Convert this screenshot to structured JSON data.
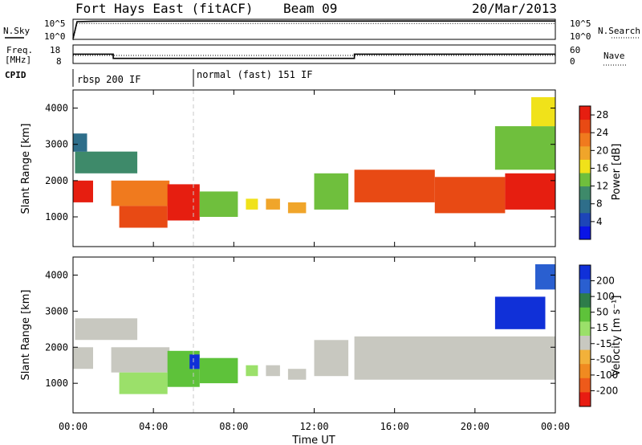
{
  "header": {
    "station": "Fort Hays East (fitACF)",
    "beam": "Beam 09",
    "date": "20/Mar/2013"
  },
  "strip_labels": {
    "nsky": "N.Sky",
    "nsearch": "N.Search",
    "freq_top": "Freq.",
    "freq_unit": "[MHz]",
    "nave": "Nave",
    "cpid": "CPID"
  },
  "noise_axis": {
    "left_ticks": [
      "10^5",
      "10^0"
    ],
    "right_ticks": [
      "10^5",
      "10^0"
    ]
  },
  "freq_axis": {
    "left_ticks": [
      "18",
      "8"
    ],
    "right_ticks": [
      "60",
      "0"
    ]
  },
  "cpid_segments": [
    {
      "label": "rbsp 200 IF",
      "start_hour": 0,
      "end_hour": 6
    },
    {
      "label": "normal (fast) 151 IF",
      "start_hour": 6,
      "end_hour": 24
    }
  ],
  "panels": {
    "power": {
      "ylabel": "Slant Range [km]",
      "cb_label": "Power [dB]"
    },
    "velocity": {
      "ylabel": "Slant Range [km]",
      "cb_label": "Velocity [m s⁻¹]"
    }
  },
  "x_axis": {
    "label": "Time UT",
    "ticks": [
      "00:00",
      "04:00",
      "08:00",
      "12:00",
      "16:00",
      "20:00",
      "00:00"
    ]
  },
  "colors": {
    "power_scale": [
      "#0a14e6",
      "#1d45b8",
      "#2e6e8a",
      "#3e8a6a",
      "#6fbf3d",
      "#f0e21a",
      "#f0a52a",
      "#f07a1e",
      "#e84a14",
      "#e61e10"
    ],
    "velocity_scale": [
      "#1030d8",
      "#2a5fd0",
      "#2e7d4a",
      "#5ec23a",
      "#9be06a",
      "#c8c8c0",
      "#f2b13a",
      "#f08a20",
      "#ee5a1a",
      "#e81c12"
    ]
  },
  "chart_data": [
    {
      "type": "line",
      "title": "Fort Hays East (fitACF)",
      "series": [
        {
          "name": "N.Sky",
          "x": [
            0,
            0.2,
            1,
            6,
            12,
            18,
            24
          ],
          "y": [
            0.5,
            60000,
            80000,
            90000,
            85000,
            90000,
            90000
          ]
        },
        {
          "name": "N.Search",
          "x": [
            0,
            0.2,
            24
          ],
          "y": [
            0.5,
            50000,
            50000
          ]
        }
      ],
      "xlabel": "Time UT",
      "xlim": [
        0,
        24
      ]
    },
    {
      "type": "line",
      "series": [
        {
          "name": "Freq.",
          "x": [
            0,
            2,
            2,
            14,
            14,
            24
          ],
          "y": [
            14,
            14,
            10.7,
            10.7,
            14,
            14
          ]
        },
        {
          "name": "Nave",
          "x": [
            0,
            24
          ],
          "y": [
            30,
            30
          ]
        }
      ],
      "xlim": [
        0,
        24
      ]
    },
    {
      "type": "heatmap",
      "ylabel": "Slant Range [km]",
      "xlabel": "Time UT",
      "xlim": [
        0,
        24
      ],
      "ylim": [
        180,
        4500
      ],
      "y_ticks": [
        1000,
        2000,
        3000,
        4000
      ],
      "colorbar": {
        "label": "Power [dB]",
        "ticks": [
          4,
          8,
          12,
          16,
          20,
          24,
          28
        ],
        "range": [
          0,
          30
        ]
      },
      "regions": [
        {
          "t0": 0.0,
          "t1": 1.0,
          "r0": 1400,
          "r1": 2000,
          "value": 28
        },
        {
          "t0": 0.1,
          "t1": 3.2,
          "r0": 2200,
          "r1": 2800,
          "value": 10
        },
        {
          "t0": 0.0,
          "t1": 0.7,
          "r0": 2800,
          "r1": 3300,
          "value": 8
        },
        {
          "t0": 1.9,
          "t1": 4.8,
          "r0": 1300,
          "r1": 2000,
          "value": 22
        },
        {
          "t0": 2.3,
          "t1": 4.7,
          "r0": 700,
          "r1": 1300,
          "value": 26
        },
        {
          "t0": 4.7,
          "t1": 6.3,
          "r0": 900,
          "r1": 1900,
          "value": 30
        },
        {
          "t0": 6.3,
          "t1": 8.2,
          "r0": 1000,
          "r1": 1700,
          "value": 12
        },
        {
          "t0": 8.6,
          "t1": 9.2,
          "r0": 1200,
          "r1": 1500,
          "value": 16
        },
        {
          "t0": 9.6,
          "t1": 10.3,
          "r0": 1200,
          "r1": 1500,
          "value": 18
        },
        {
          "t0": 10.7,
          "t1": 11.6,
          "r0": 1100,
          "r1": 1400,
          "value": 18
        },
        {
          "t0": 12.0,
          "t1": 13.7,
          "r0": 1200,
          "r1": 2200,
          "value": 14
        },
        {
          "t0": 14.0,
          "t1": 18.0,
          "r0": 1400,
          "r1": 2300,
          "value": 26
        },
        {
          "t0": 18.0,
          "t1": 21.5,
          "r0": 1100,
          "r1": 2100,
          "value": 26
        },
        {
          "t0": 21.5,
          "t1": 24.0,
          "r0": 1200,
          "r1": 2200,
          "value": 28
        },
        {
          "t0": 21.0,
          "t1": 24.0,
          "r0": 2300,
          "r1": 3500,
          "value": 12
        },
        {
          "t0": 22.8,
          "t1": 24.0,
          "r0": 3500,
          "r1": 4300,
          "value": 16
        }
      ]
    },
    {
      "type": "heatmap",
      "ylabel": "Slant Range [km]",
      "xlabel": "Time UT",
      "xlim": [
        0,
        24
      ],
      "ylim": [
        180,
        4500
      ],
      "y_ticks": [
        1000,
        2000,
        3000,
        4000
      ],
      "colorbar": {
        "label": "Velocity [m s⁻¹]",
        "ticks": [
          200,
          100,
          50,
          15,
          -15,
          -50,
          -100,
          -200
        ],
        "range": [
          -250,
          250
        ]
      },
      "regions": [
        {
          "t0": 0.0,
          "t1": 1.0,
          "r0": 1400,
          "r1": 2000,
          "value": 0
        },
        {
          "t0": 0.1,
          "t1": 3.2,
          "r0": 2200,
          "r1": 2800,
          "value": 0
        },
        {
          "t0": 1.9,
          "t1": 4.8,
          "r0": 1300,
          "r1": 2000,
          "value": 0
        },
        {
          "t0": 2.3,
          "t1": 4.7,
          "r0": 700,
          "r1": 1300,
          "value": 40
        },
        {
          "t0": 4.7,
          "t1": 6.3,
          "r0": 900,
          "r1": 1900,
          "value": 80
        },
        {
          "t0": 5.8,
          "t1": 6.3,
          "r0": 1400,
          "r1": 1800,
          "value": 220
        },
        {
          "t0": 6.3,
          "t1": 8.2,
          "r0": 1000,
          "r1": 1700,
          "value": 60
        },
        {
          "t0": 8.6,
          "t1": 9.2,
          "r0": 1200,
          "r1": 1500,
          "value": 30
        },
        {
          "t0": 9.6,
          "t1": 10.3,
          "r0": 1200,
          "r1": 1500,
          "value": 0
        },
        {
          "t0": 10.7,
          "t1": 11.6,
          "r0": 1100,
          "r1": 1400,
          "value": 0
        },
        {
          "t0": 12.0,
          "t1": 13.7,
          "r0": 1200,
          "r1": 2200,
          "value": 0
        },
        {
          "t0": 14.0,
          "t1": 24.0,
          "r0": 1100,
          "r1": 2300,
          "value": 0
        },
        {
          "t0": 21.0,
          "t1": 23.5,
          "r0": 2500,
          "r1": 3400,
          "value": 220
        },
        {
          "t0": 23.0,
          "t1": 24.0,
          "r0": 3600,
          "r1": 4300,
          "value": 200
        }
      ]
    }
  ]
}
